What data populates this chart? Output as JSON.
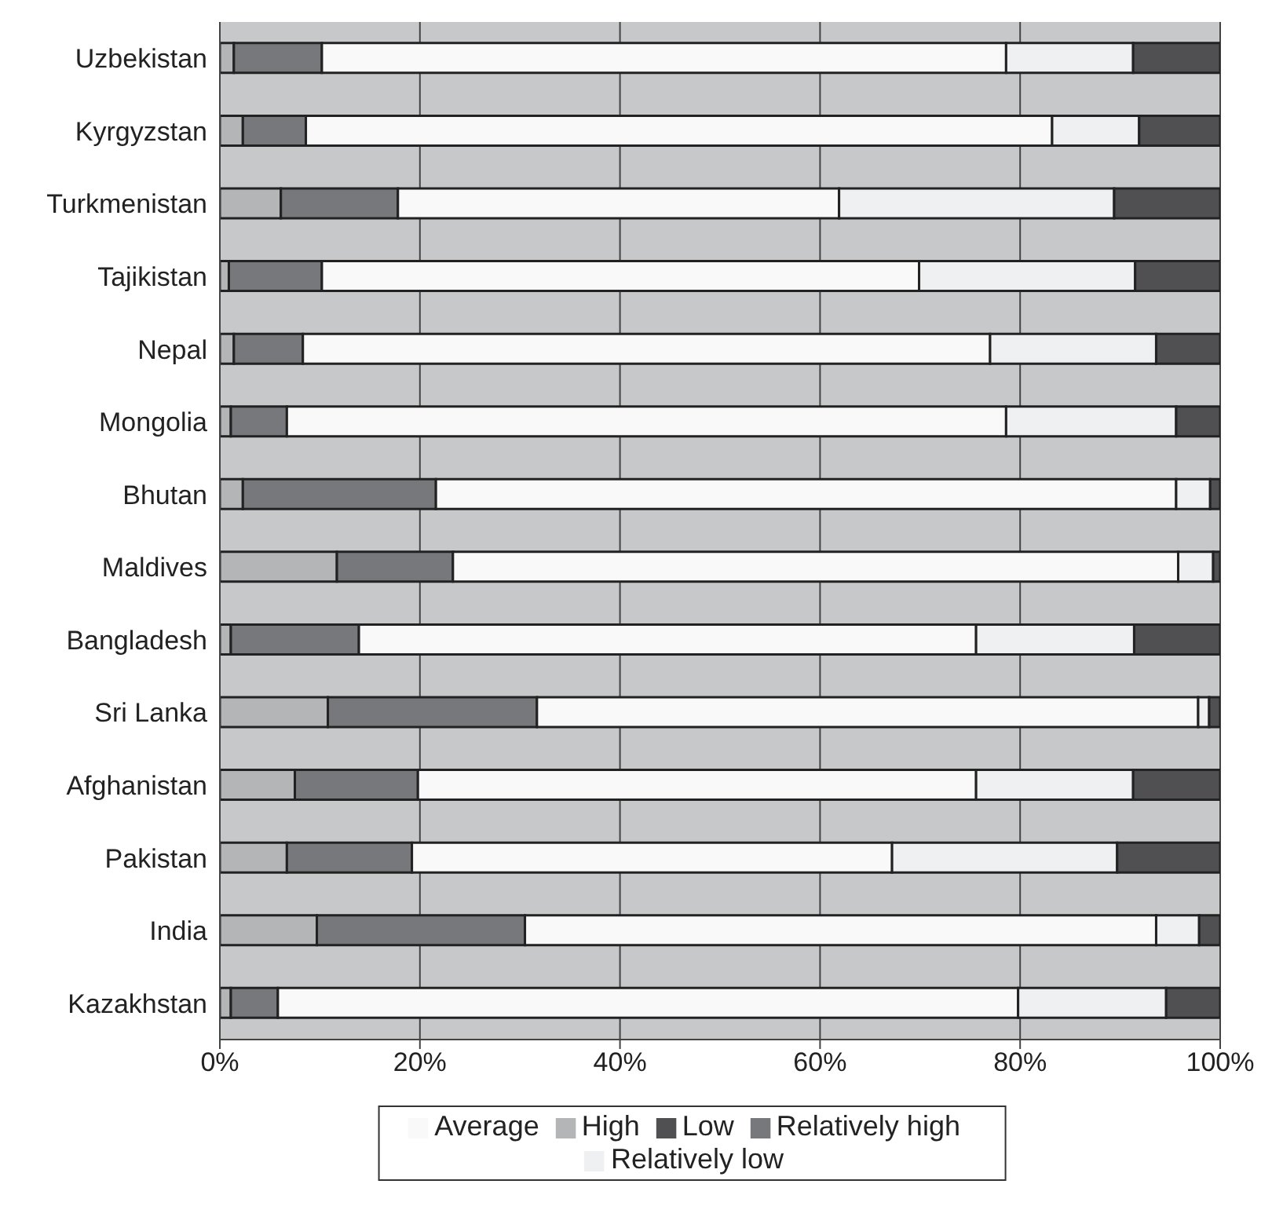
{
  "chart_data": {
    "type": "bar",
    "orientation": "horizontal",
    "stacked": true,
    "categories": [
      "Uzbekistan",
      "Kyrgyzstan",
      "Turkmenistan",
      "Tajikistan",
      "Nepal",
      "Mongolia",
      "Bhutan",
      "Maldives",
      "Bangladesh",
      "Sri Lanka",
      "Afghanistan",
      "Pakistan",
      "India",
      "Kazakhstan"
    ],
    "series": [
      {
        "name": "High",
        "color": "#b4b5b7",
        "values": [
          1.4,
          2.3,
          6.1,
          0.9,
          1.4,
          1.1,
          2.3,
          11.7,
          1.1,
          10.8,
          7.5,
          6.7,
          9.7,
          1.1
        ]
      },
      {
        "name": "Relatively high",
        "color": "#77787b",
        "values": [
          8.8,
          6.3,
          11.7,
          9.3,
          6.9,
          5.6,
          19.3,
          11.6,
          12.8,
          20.9,
          12.3,
          12.5,
          20.8,
          4.7
        ]
      },
      {
        "name": "Average",
        "color": "#f9f9f9",
        "values": [
          68.4,
          74.6,
          44.1,
          59.7,
          68.7,
          71.9,
          74,
          72.5,
          61.7,
          66.1,
          55.8,
          48,
          63.1,
          74
        ]
      },
      {
        "name": "Relatively low",
        "color": "#eff0f2",
        "values": [
          12.7,
          8.7,
          27.5,
          21.6,
          16.6,
          17,
          3.4,
          3.5,
          15.8,
          1.1,
          15.7,
          22.5,
          4.3,
          14.8
        ]
      },
      {
        "name": "Low",
        "color": "#505052",
        "values": [
          8.7,
          8.1,
          10.6,
          8.5,
          6.4,
          4.4,
          1,
          0.7,
          8.6,
          1.1,
          8.7,
          10.3,
          2.1,
          5.4
        ]
      }
    ],
    "xlim": [
      0,
      100
    ],
    "xticks": [
      {
        "value": 0,
        "label": "0%"
      },
      {
        "value": 20,
        "label": "20%"
      },
      {
        "value": 40,
        "label": "40%"
      },
      {
        "value": 60,
        "label": "60%"
      },
      {
        "value": 80,
        "label": "80%"
      },
      {
        "value": 100,
        "label": "100%"
      }
    ],
    "grid": "x",
    "legend": "bottom"
  }
}
